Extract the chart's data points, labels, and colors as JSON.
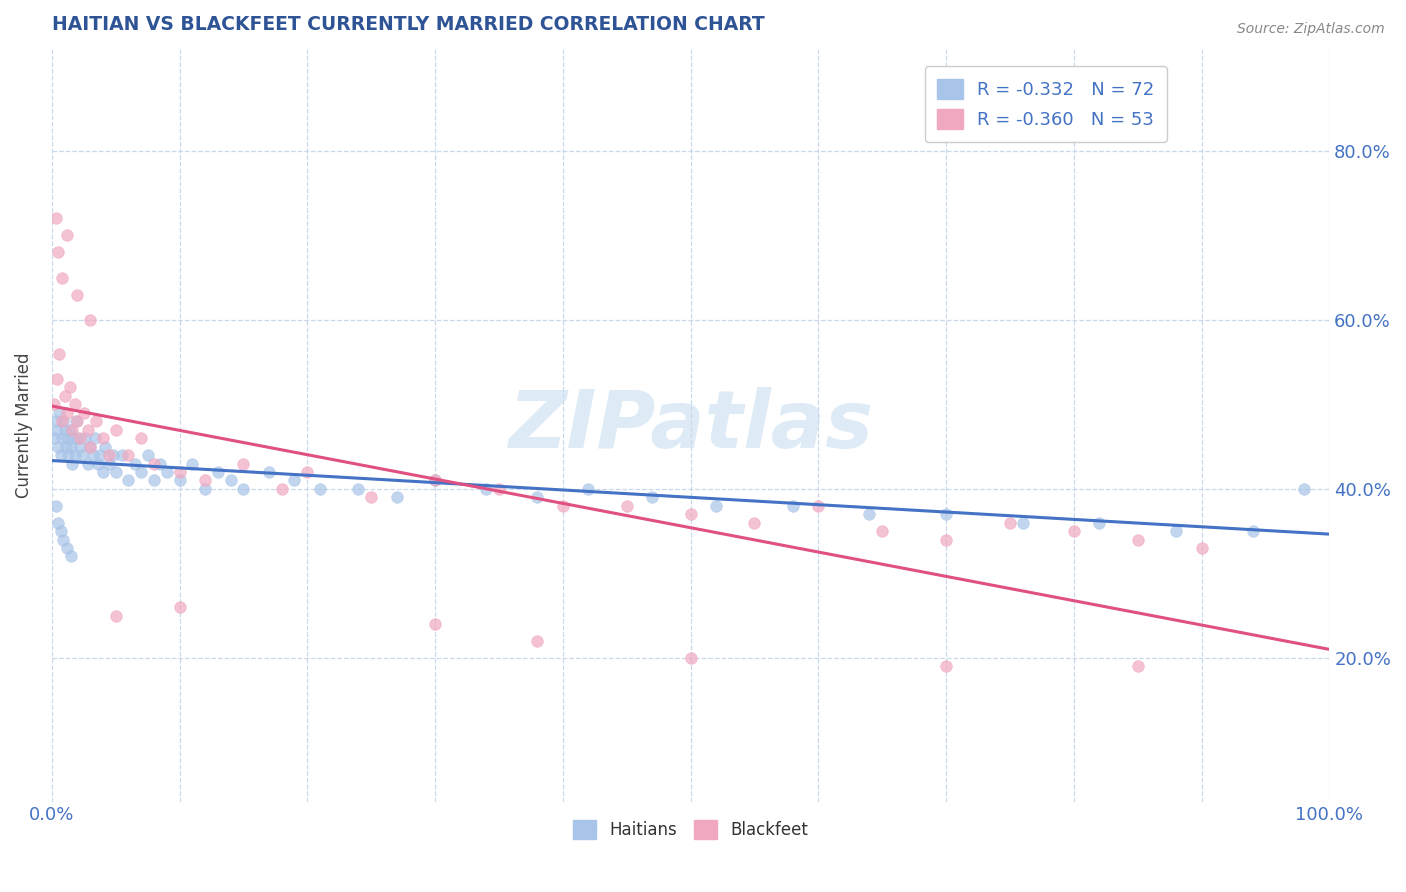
{
  "title": "HAITIAN VS BLACKFEET CURRENTLY MARRIED CORRELATION CHART",
  "source": "Source: ZipAtlas.com",
  "ylabel": "Currently Married",
  "xlim": [
    0.0,
    1.0
  ],
  "ylim": [
    0.03,
    0.92
  ],
  "haitian_R": -0.332,
  "haitian_N": 72,
  "blackfeet_R": -0.36,
  "blackfeet_N": 53,
  "haitian_color": "#a8c4e8",
  "blackfeet_color": "#f0a8c0",
  "haitian_line_color": "#4472c4",
  "blackfeet_line_color": "#e05080",
  "watermark": "ZIPatlas",
  "haitian_x": [
    0.002,
    0.003,
    0.004,
    0.005,
    0.006,
    0.007,
    0.008,
    0.009,
    0.01,
    0.011,
    0.012,
    0.013,
    0.014,
    0.015,
    0.016,
    0.017,
    0.018,
    0.019,
    0.02,
    0.022,
    0.024,
    0.026,
    0.028,
    0.03,
    0.032,
    0.034,
    0.036,
    0.038,
    0.04,
    0.042,
    0.045,
    0.048,
    0.05,
    0.055,
    0.06,
    0.065,
    0.07,
    0.075,
    0.08,
    0.085,
    0.09,
    0.1,
    0.11,
    0.12,
    0.13,
    0.14,
    0.15,
    0.17,
    0.19,
    0.21,
    0.24,
    0.27,
    0.3,
    0.34,
    0.38,
    0.42,
    0.47,
    0.52,
    0.58,
    0.64,
    0.7,
    0.76,
    0.82,
    0.88,
    0.94,
    0.98,
    0.003,
    0.005,
    0.007,
    0.009,
    0.012,
    0.015
  ],
  "haitian_y": [
    0.46,
    0.48,
    0.47,
    0.45,
    0.49,
    0.44,
    0.46,
    0.48,
    0.47,
    0.45,
    0.46,
    0.44,
    0.47,
    0.45,
    0.43,
    0.46,
    0.44,
    0.48,
    0.46,
    0.45,
    0.44,
    0.46,
    0.43,
    0.45,
    0.44,
    0.46,
    0.43,
    0.44,
    0.42,
    0.45,
    0.43,
    0.44,
    0.42,
    0.44,
    0.41,
    0.43,
    0.42,
    0.44,
    0.41,
    0.43,
    0.42,
    0.41,
    0.43,
    0.4,
    0.42,
    0.41,
    0.4,
    0.42,
    0.41,
    0.4,
    0.4,
    0.39,
    0.41,
    0.4,
    0.39,
    0.4,
    0.39,
    0.38,
    0.38,
    0.37,
    0.37,
    0.36,
    0.36,
    0.35,
    0.35,
    0.4,
    0.38,
    0.36,
    0.35,
    0.34,
    0.33,
    0.32
  ],
  "blackfeet_x": [
    0.002,
    0.004,
    0.006,
    0.008,
    0.01,
    0.012,
    0.014,
    0.016,
    0.018,
    0.02,
    0.022,
    0.025,
    0.028,
    0.03,
    0.035,
    0.04,
    0.045,
    0.05,
    0.06,
    0.07,
    0.08,
    0.1,
    0.12,
    0.15,
    0.18,
    0.2,
    0.25,
    0.3,
    0.35,
    0.4,
    0.45,
    0.5,
    0.55,
    0.6,
    0.65,
    0.7,
    0.75,
    0.8,
    0.85,
    0.9,
    0.003,
    0.005,
    0.008,
    0.012,
    0.02,
    0.03,
    0.05,
    0.1,
    0.3,
    0.38,
    0.5,
    0.7,
    0.85
  ],
  "blackfeet_y": [
    0.5,
    0.53,
    0.56,
    0.48,
    0.51,
    0.49,
    0.52,
    0.47,
    0.5,
    0.48,
    0.46,
    0.49,
    0.47,
    0.45,
    0.48,
    0.46,
    0.44,
    0.47,
    0.44,
    0.46,
    0.43,
    0.42,
    0.41,
    0.43,
    0.4,
    0.42,
    0.39,
    0.41,
    0.4,
    0.38,
    0.38,
    0.37,
    0.36,
    0.38,
    0.35,
    0.34,
    0.36,
    0.35,
    0.34,
    0.33,
    0.72,
    0.68,
    0.65,
    0.7,
    0.63,
    0.6,
    0.25,
    0.26,
    0.24,
    0.22,
    0.2,
    0.19,
    0.19
  ],
  "xticks": [
    0.0,
    0.1,
    0.2,
    0.3,
    0.4,
    0.5,
    0.6,
    0.7,
    0.8,
    0.9,
    1.0
  ],
  "yticks": [
    0.2,
    0.4,
    0.6,
    0.8
  ],
  "ytick_labels": [
    "20.0%",
    "40.0%",
    "60.0%",
    "80.0%"
  ],
  "title_color": "#2f5496",
  "tick_color": "#4472c4",
  "source_color": "#888888",
  "grid_color": "#c8d8ec",
  "watermark_color": "#c8ddf0"
}
